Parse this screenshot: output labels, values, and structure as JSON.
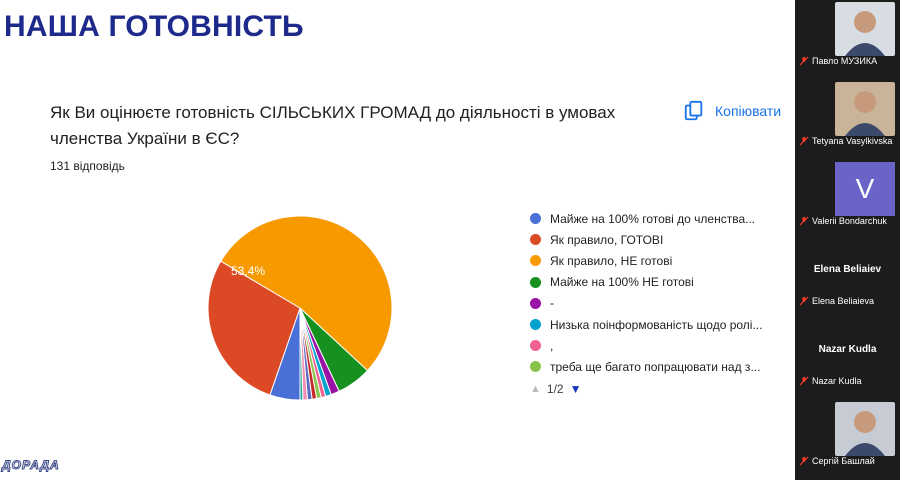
{
  "slide": {
    "title": "НАША ГОТОВНІСТЬ",
    "question": "Як Ви оцінюєте готовність СІЛЬСЬКИХ ГРОМАД до діяльності в умовах членства України в ЄС?",
    "copy_label": "Копіювати",
    "responses": "131 відповідь",
    "watermark": "ДОРАДА"
  },
  "chart_data": {
    "type": "pie",
    "slices": [
      {
        "label": "Майже на 100% готові до членства...",
        "value": 5.3,
        "color": "#4a6fd6",
        "data_label": ""
      },
      {
        "label": "Як правило, ГОТОВІ",
        "value": 28.2,
        "color": "#db4a25",
        "data_label": "28,2%"
      },
      {
        "label": "Як правило, НЕ готові",
        "value": 53.4,
        "color": "#f79a00",
        "data_label": "53,4%"
      },
      {
        "label": "Майже на 100% НЕ готові",
        "value": 6.1,
        "color": "#16911f",
        "data_label": ""
      },
      {
        "label": "-",
        "value": 1.5,
        "color": "#9912a3",
        "data_label": ""
      },
      {
        "label": "Низька поінформованість щодо ролі...",
        "value": 1.0,
        "color": "#00a3cd",
        "data_label": ""
      },
      {
        "label": ",",
        "value": 0.8,
        "color": "#f06292",
        "data_label": ""
      },
      {
        "label": "треба ще багато попрацювати над з...",
        "value": 0.8,
        "color": "#8bc34a",
        "data_label": ""
      },
      {
        "label": "",
        "value": 0.8,
        "color": "#c62828",
        "data_label": ""
      },
      {
        "label": "",
        "value": 0.8,
        "color": "#5c6bc0",
        "data_label": ""
      },
      {
        "label": "",
        "value": 0.8,
        "color": "#f48fb1",
        "data_label": ""
      },
      {
        "label": "",
        "value": 0.5,
        "color": "#26a69a",
        "data_label": ""
      }
    ],
    "legend_position": "right",
    "legend_page": "1/2"
  },
  "participants": [
    {
      "name": "Павло МУЗИКА",
      "type": "video",
      "bg": "#d8dde3",
      "muted": true
    },
    {
      "name": "Tetyana Vasylkivska",
      "type": "video",
      "bg": "#c9b49a",
      "muted": true
    },
    {
      "name": "Valerii Bondarchuk",
      "type": "letter",
      "letter": "V",
      "muted": true
    },
    {
      "name": "Elena Beliaieva",
      "type": "name",
      "big_name": "Elena Beliaiev",
      "muted": true
    },
    {
      "name": "Nazar Kudla",
      "type": "name",
      "big_name": "Nazar Kudla",
      "muted": true
    },
    {
      "name": "Сергій Башлай",
      "type": "video",
      "bg": "#c7ccd4",
      "muted": true
    }
  ]
}
